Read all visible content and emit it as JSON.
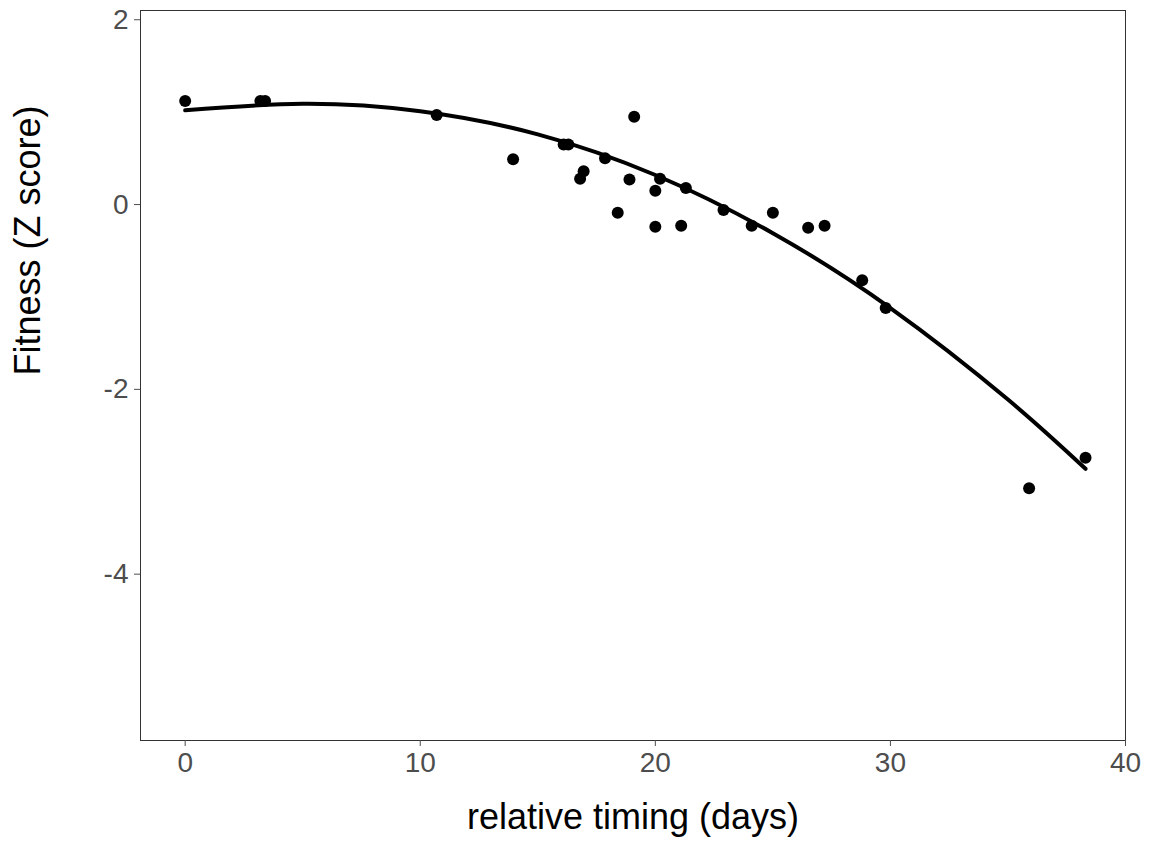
{
  "chart_data": {
    "type": "scatter",
    "x_label": "relative timing (days)",
    "y_label": "Fitness (Z score)",
    "xlim": [
      -1.9,
      40
    ],
    "ylim": [
      -5.8,
      2.1
    ],
    "xticks": [
      0,
      10,
      20,
      30,
      40
    ],
    "yticks": [
      -4,
      -2,
      0,
      2
    ],
    "grid": false,
    "series": [
      {
        "type": "scatter",
        "marker": "circle",
        "color": "#000000",
        "x": [
          0,
          3.2,
          3.4,
          10.7,
          13.95,
          16.1,
          16.3,
          16.8,
          16.95,
          17.86,
          18.4,
          18.9,
          19.1,
          20.0,
          20.0,
          20.2,
          21.1,
          21.3,
          22.9,
          24.1,
          25.0,
          26.5,
          27.2,
          28.8,
          29.8,
          35.9,
          38.3
        ],
        "values": [
          1.12,
          1.12,
          1.12,
          0.97,
          0.49,
          0.65,
          0.65,
          0.28,
          0.36,
          0.5,
          -0.09,
          0.27,
          0.95,
          0.15,
          -0.24,
          0.28,
          -0.23,
          0.18,
          -0.06,
          -0.23,
          -0.09,
          -0.25,
          -0.23,
          -0.82,
          -1.12,
          -3.07,
          -2.74
        ]
      },
      {
        "type": "line",
        "line_style": "solid",
        "color": "#000000",
        "x": [
          0,
          5,
          10,
          15,
          20,
          25,
          30,
          35,
          38.3
        ],
        "values": [
          1.02,
          1.09,
          1.01,
          0.76,
          0.32,
          -0.31,
          -1.12,
          -2.11,
          -2.86
        ]
      }
    ]
  }
}
